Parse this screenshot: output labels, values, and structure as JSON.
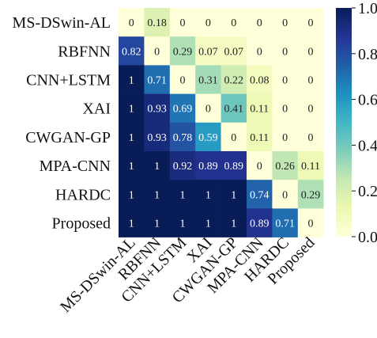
{
  "chart_data": {
    "type": "heatmap",
    "row_labels": [
      "MS-DSwin-AL",
      "RBFNN",
      "CNN+LSTM",
      "XAI",
      "CWGAN-GP",
      "MPA-CNN",
      "HARDC",
      "Proposed"
    ],
    "col_labels": [
      "MS-DSwin-AL",
      "RBFNN",
      "CNN+LSTM",
      "XAI",
      "CWGAN-GP",
      "MPA-CNN",
      "HARDC",
      "Proposed"
    ],
    "values": [
      [
        0,
        0.18,
        0,
        0,
        0,
        0,
        0,
        0
      ],
      [
        0.82,
        0,
        0.29,
        0.07,
        0.07,
        0,
        0,
        0
      ],
      [
        1,
        0.71,
        0,
        0.31,
        0.22,
        0.08,
        0,
        0
      ],
      [
        1,
        0.93,
        0.69,
        0,
        0.41,
        0.11,
        0,
        0
      ],
      [
        1,
        0.93,
        0.78,
        0.59,
        0,
        0.11,
        0,
        0
      ],
      [
        1,
        1,
        0.92,
        0.89,
        0.89,
        0,
        0.26,
        0.11
      ],
      [
        1,
        1,
        1,
        1,
        1,
        0.74,
        0,
        0.29
      ],
      [
        1,
        1,
        1,
        1,
        1,
        0.89,
        0.71,
        0
      ]
    ],
    "cell_labels": [
      [
        "0",
        "0.18",
        "0",
        "0",
        "0",
        "0",
        "0",
        "0"
      ],
      [
        "0.82",
        "0",
        "0.29",
        "0.07",
        "0.07",
        "0",
        "0",
        "0"
      ],
      [
        "1",
        "0.71",
        "0",
        "0.31",
        "0.22",
        "0.08",
        "0",
        "0"
      ],
      [
        "1",
        "0.93",
        "0.69",
        "0",
        "0.41",
        "0.11",
        "0",
        "0"
      ],
      [
        "1",
        "0.93",
        "0.78",
        "0.59",
        "0",
        "0.11",
        "0",
        "0"
      ],
      [
        "1",
        "1",
        "0.92",
        "0.89",
        "0.89",
        "0",
        "0.26",
        "0.11"
      ],
      [
        "1",
        "1",
        "1",
        "1",
        "1",
        "0.74",
        "0",
        "0.29"
      ],
      [
        "1",
        "1",
        "1",
        "1",
        "1",
        "0.89",
        "0.71",
        "0"
      ]
    ],
    "colorbar": {
      "range": [
        0.0,
        1.0
      ],
      "ticks": [
        "0.0",
        "0.2",
        "0.4",
        "0.6",
        "0.8",
        "1.0"
      ],
      "colormap": "YlGnBu"
    }
  }
}
